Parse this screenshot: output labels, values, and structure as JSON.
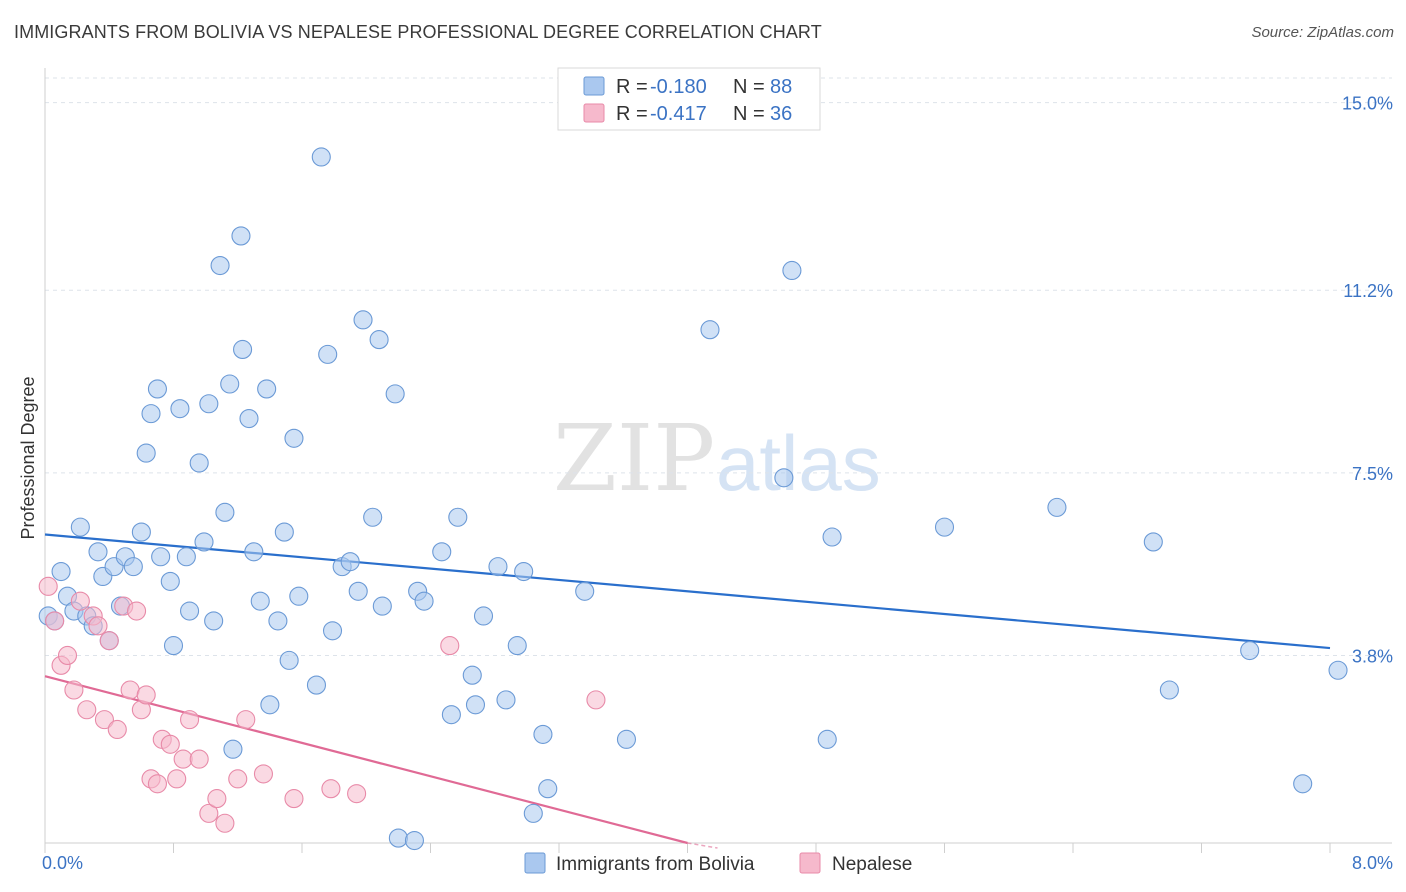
{
  "title": "IMMIGRANTS FROM BOLIVIA VS NEPALESE PROFESSIONAL DEGREE CORRELATION CHART",
  "source": "Source: ZipAtlas.com",
  "watermark": {
    "zip": "ZIP",
    "atlas": "atlas"
  },
  "colors": {
    "blue_fill": "#aac8ef",
    "blue_stroke": "#6b9ad6",
    "blue_line": "#2a6fcc",
    "pink_fill": "#f6b9cc",
    "pink_stroke": "#e88aa8",
    "pink_line": "#e06a95",
    "grid": "#dde3ea",
    "axis_text": "#3b73c4"
  },
  "legend": {
    "rows": [
      {
        "r_label": "R = ",
        "r_value": "-0.180",
        "n_label": "N = ",
        "n_value": "88"
      },
      {
        "r_label": "R = ",
        "r_value": "-0.417",
        "n_label": "N = ",
        "n_value": "36"
      }
    ]
  },
  "chart_data": {
    "type": "scatter",
    "xlabel": "",
    "ylabel": "Professional Degree",
    "xlim": [
      0,
      8
    ],
    "ylim": [
      0,
      15.5
    ],
    "x_ticks": [
      0.0,
      8.0
    ],
    "x_tick_labels": [
      "0.0%",
      "8.0%"
    ],
    "y_ticks": [
      3.8,
      7.5,
      11.2,
      15.0
    ],
    "y_tick_labels": [
      "3.8%",
      "7.5%",
      "11.2%",
      "15.0%"
    ],
    "grid": "horizontal dashed",
    "legend_position": "top-center",
    "series": [
      {
        "name": "Immigrants from Bolivia",
        "color": "#aac8ef",
        "points": [
          [
            0.02,
            4.6
          ],
          [
            0.06,
            4.5
          ],
          [
            0.1,
            5.5
          ],
          [
            0.14,
            5.0
          ],
          [
            0.18,
            4.7
          ],
          [
            0.22,
            6.4
          ],
          [
            0.26,
            4.6
          ],
          [
            0.3,
            4.4
          ],
          [
            0.33,
            5.9
          ],
          [
            0.36,
            5.4
          ],
          [
            0.4,
            4.1
          ],
          [
            0.43,
            5.6
          ],
          [
            0.47,
            4.8
          ],
          [
            0.5,
            5.8
          ],
          [
            0.55,
            5.6
          ],
          [
            0.6,
            6.3
          ],
          [
            0.63,
            7.9
          ],
          [
            0.66,
            8.7
          ],
          [
            0.7,
            9.2
          ],
          [
            0.72,
            5.8
          ],
          [
            0.78,
            5.3
          ],
          [
            0.8,
            4.0
          ],
          [
            0.84,
            8.8
          ],
          [
            0.88,
            5.8
          ],
          [
            0.9,
            4.7
          ],
          [
            0.96,
            7.7
          ],
          [
            0.99,
            6.1
          ],
          [
            1.02,
            8.9
          ],
          [
            1.05,
            4.5
          ],
          [
            1.09,
            11.7
          ],
          [
            1.12,
            6.7
          ],
          [
            1.15,
            9.3
          ],
          [
            1.17,
            1.9
          ],
          [
            1.22,
            12.3
          ],
          [
            1.23,
            10.0
          ],
          [
            1.27,
            8.6
          ],
          [
            1.3,
            5.9
          ],
          [
            1.34,
            4.9
          ],
          [
            1.38,
            9.2
          ],
          [
            1.4,
            2.8
          ],
          [
            1.45,
            4.5
          ],
          [
            1.49,
            6.3
          ],
          [
            1.52,
            3.7
          ],
          [
            1.55,
            8.2
          ],
          [
            1.58,
            5.0
          ],
          [
            1.69,
            3.2
          ],
          [
            1.72,
            13.9
          ],
          [
            1.76,
            9.9
          ],
          [
            1.79,
            4.3
          ],
          [
            1.85,
            5.6
          ],
          [
            1.9,
            5.7
          ],
          [
            1.95,
            5.1
          ],
          [
            1.98,
            10.6
          ],
          [
            2.04,
            6.6
          ],
          [
            2.08,
            10.2
          ],
          [
            2.1,
            4.8
          ],
          [
            2.18,
            9.1
          ],
          [
            2.2,
            0.1
          ],
          [
            2.3,
            0.05
          ],
          [
            2.32,
            5.1
          ],
          [
            2.36,
            4.9
          ],
          [
            2.47,
            5.9
          ],
          [
            2.53,
            2.6
          ],
          [
            2.57,
            6.6
          ],
          [
            2.66,
            3.4
          ],
          [
            2.68,
            2.8
          ],
          [
            2.73,
            4.6
          ],
          [
            2.82,
            5.6
          ],
          [
            2.87,
            2.9
          ],
          [
            2.94,
            4.0
          ],
          [
            2.98,
            5.5
          ],
          [
            3.04,
            0.6
          ],
          [
            3.1,
            2.2
          ],
          [
            3.13,
            1.1
          ],
          [
            3.36,
            5.1
          ],
          [
            3.62,
            2.1
          ],
          [
            4.14,
            10.4
          ],
          [
            4.6,
            7.4
          ],
          [
            4.65,
            11.6
          ],
          [
            4.87,
            2.1
          ],
          [
            4.9,
            6.2
          ],
          [
            5.6,
            6.4
          ],
          [
            6.3,
            6.8
          ],
          [
            6.9,
            6.1
          ],
          [
            7.0,
            3.1
          ],
          [
            7.5,
            3.9
          ],
          [
            7.83,
            1.2
          ],
          [
            8.05,
            3.5
          ]
        ]
      },
      {
        "name": "Nepalese",
        "color": "#f6b9cc",
        "points": [
          [
            0.02,
            5.2
          ],
          [
            0.06,
            4.5
          ],
          [
            0.1,
            3.6
          ],
          [
            0.14,
            3.8
          ],
          [
            0.18,
            3.1
          ],
          [
            0.22,
            4.9
          ],
          [
            0.26,
            2.7
          ],
          [
            0.3,
            4.6
          ],
          [
            0.33,
            4.4
          ],
          [
            0.37,
            2.5
          ],
          [
            0.4,
            4.1
          ],
          [
            0.45,
            2.3
          ],
          [
            0.49,
            4.8
          ],
          [
            0.53,
            3.1
          ],
          [
            0.57,
            4.7
          ],
          [
            0.6,
            2.7
          ],
          [
            0.63,
            3.0
          ],
          [
            0.66,
            1.3
          ],
          [
            0.7,
            1.2
          ],
          [
            0.73,
            2.1
          ],
          [
            0.78,
            2.0
          ],
          [
            0.82,
            1.3
          ],
          [
            0.86,
            1.7
          ],
          [
            0.9,
            2.5
          ],
          [
            0.96,
            1.7
          ],
          [
            1.02,
            0.6
          ],
          [
            1.07,
            0.9
          ],
          [
            1.12,
            0.4
          ],
          [
            1.2,
            1.3
          ],
          [
            1.25,
            2.5
          ],
          [
            1.36,
            1.4
          ],
          [
            1.55,
            0.9
          ],
          [
            1.78,
            1.1
          ],
          [
            1.94,
            1.0
          ],
          [
            2.52,
            4.0
          ],
          [
            3.43,
            2.9
          ]
        ]
      }
    ],
    "trendlines": [
      {
        "series": "Immigrants from Bolivia",
        "x": [
          0.0,
          8.0
        ],
        "y": [
          6.25,
          3.95
        ]
      },
      {
        "series": "Nepalese",
        "x": [
          0.0,
          4.0
        ],
        "y": [
          3.38,
          0.0
        ]
      }
    ]
  }
}
